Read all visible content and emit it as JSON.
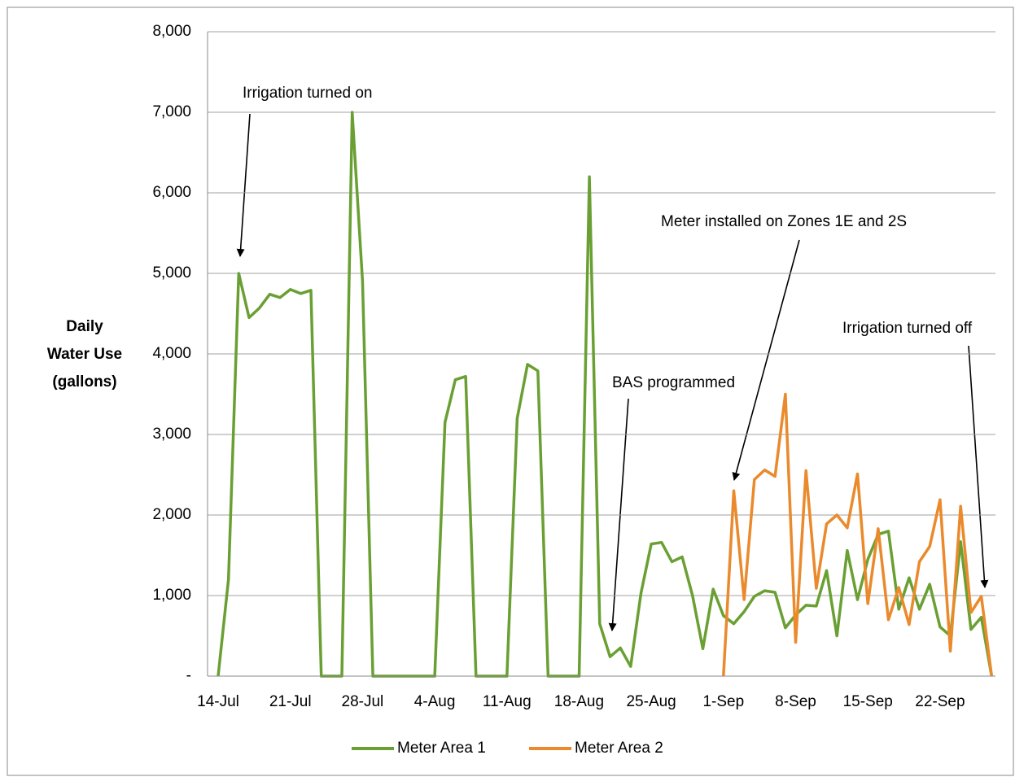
{
  "chart_data": {
    "type": "line",
    "ylabel": [
      "Daily",
      "Water Use",
      "(gallons)"
    ],
    "categories": [
      "14-Jul",
      null,
      null,
      null,
      null,
      null,
      null,
      "21-Jul",
      null,
      null,
      null,
      null,
      null,
      null,
      "28-Jul",
      null,
      null,
      null,
      null,
      null,
      null,
      "4-Aug",
      null,
      null,
      null,
      null,
      null,
      null,
      "11-Aug",
      null,
      null,
      null,
      null,
      null,
      null,
      "18-Aug",
      null,
      null,
      null,
      null,
      null,
      null,
      "25-Aug",
      null,
      null,
      null,
      null,
      null,
      null,
      "1-Sep",
      null,
      null,
      null,
      null,
      null,
      null,
      "8-Sep",
      null,
      null,
      null,
      null,
      null,
      null,
      "15-Sep",
      null,
      null,
      null,
      null,
      null,
      null,
      "22-Sep",
      null,
      null,
      null,
      null,
      null
    ],
    "series": [
      {
        "name": "Meter Area 1",
        "color": "#6aa033",
        "values": [
          0,
          1200,
          5000,
          4450,
          4570,
          4740,
          4700,
          4800,
          4750,
          4790,
          0,
          0,
          0,
          7000,
          4900,
          0,
          0,
          0,
          0,
          0,
          0,
          0,
          3150,
          3680,
          3720,
          0,
          0,
          0,
          0,
          3200,
          3870,
          3790,
          0,
          0,
          0,
          0,
          6200,
          650,
          240,
          350,
          120,
          1030,
          1640,
          1660,
          1420,
          1480,
          1000,
          340,
          1080,
          750,
          650,
          800,
          990,
          1060,
          1040,
          600,
          760,
          880,
          870,
          1310,
          500,
          1560,
          950,
          1450,
          1760,
          1800,
          830,
          1220,
          830,
          1140,
          610,
          500,
          1670,
          580,
          730,
          0
        ]
      },
      {
        "name": "Meter Area 2",
        "color": "#ea8a2c",
        "values": [
          null,
          null,
          null,
          null,
          null,
          null,
          null,
          null,
          null,
          null,
          null,
          null,
          null,
          null,
          null,
          null,
          null,
          null,
          null,
          null,
          null,
          null,
          null,
          null,
          null,
          null,
          null,
          null,
          null,
          null,
          null,
          null,
          null,
          null,
          null,
          null,
          null,
          null,
          null,
          null,
          null,
          null,
          null,
          null,
          null,
          null,
          null,
          null,
          null,
          0,
          2300,
          950,
          2440,
          2560,
          2480,
          3500,
          420,
          2550,
          1090,
          1890,
          2000,
          1840,
          2510,
          900,
          1830,
          700,
          1100,
          640,
          1420,
          1610,
          2190,
          310,
          2110,
          790,
          990,
          0
        ]
      }
    ],
    "ylim": [
      0,
      8000
    ],
    "yticks": [
      {
        "value": 0,
        "label": "-"
      },
      {
        "value": 1000,
        "label": "1,000"
      },
      {
        "value": 2000,
        "label": "2,000"
      },
      {
        "value": 3000,
        "label": "3,000"
      },
      {
        "value": 4000,
        "label": "4,000"
      },
      {
        "value": 5000,
        "label": "5,000"
      },
      {
        "value": 6000,
        "label": "6,000"
      },
      {
        "value": 7000,
        "label": "7,000"
      },
      {
        "value": 8000,
        "label": "8,000"
      }
    ],
    "grid": true,
    "legend": "bottom",
    "annotations": [
      "Irrigation turned on",
      "Meter installed on Zones 1E and 2S",
      "BAS programmed",
      "Irrigation turned off"
    ]
  }
}
